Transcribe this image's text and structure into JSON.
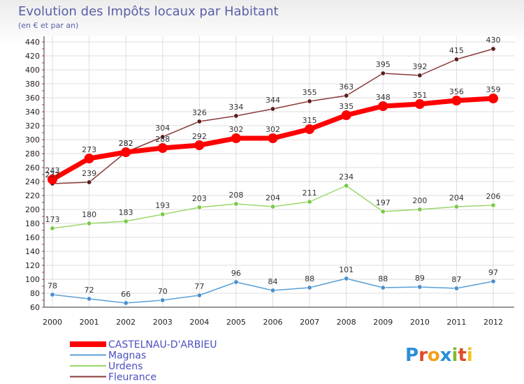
{
  "header": {
    "title": "Evolution des Impôts locaux par Habitant",
    "subtitle": "(en € et par an)"
  },
  "logo": {
    "text": "Proxiti",
    "letter_colors": [
      "#2a8fd8",
      "#e04a2a",
      "#f2a21c",
      "#2a8fd8",
      "#7cbd2a",
      "#e04a2a",
      "#f2c21c"
    ]
  },
  "colors": {
    "background_top": "#f2f2f2",
    "plot_background": "#ffffff",
    "grid": "#dddddd",
    "title": "#5a5fa8",
    "legend_text": "#4a4fc0"
  },
  "chart_data": {
    "type": "line",
    "title": "Evolution des Impôts locaux par Habitant",
    "subtitle": "(en € et par an)",
    "xlabel": "",
    "ylabel": "",
    "x": [
      "2000",
      "2001",
      "2002",
      "2003",
      "2004",
      "2005",
      "2006",
      "2007",
      "2008",
      "2009",
      "2010",
      "2011",
      "2012"
    ],
    "ylim": [
      60,
      440
    ],
    "yticks": [
      60,
      80,
      100,
      120,
      140,
      160,
      180,
      200,
      220,
      240,
      260,
      280,
      300,
      320,
      340,
      360,
      380,
      400,
      420,
      440
    ],
    "grid": true,
    "legend_position": "bottom-left",
    "series": [
      {
        "name": "CASTELNAU-D'ARBIEU",
        "color": "#ff0000",
        "marker": "#ff0000",
        "values": [
          243,
          273,
          282,
          288,
          292,
          302,
          302,
          315,
          335,
          348,
          351,
          356,
          359
        ]
      },
      {
        "name": "Magnas",
        "color": "#5a9fd6",
        "marker": "#4a8fcc",
        "values": [
          78,
          72,
          66,
          70,
          77,
          96,
          84,
          88,
          101,
          88,
          89,
          87,
          97
        ]
      },
      {
        "name": "Urdens",
        "color": "#9ad86a",
        "marker": "#7cc84a",
        "values": [
          173,
          180,
          183,
          193,
          203,
          208,
          204,
          211,
          234,
          197,
          200,
          204,
          206
        ]
      },
      {
        "name": "Fleurance",
        "color": "#8a3a3a",
        "marker": "#5a1a1a",
        "values": [
          237,
          239,
          282,
          304,
          326,
          334,
          344,
          355,
          363,
          395,
          392,
          415,
          430
        ]
      }
    ],
    "data_labels": {
      "CASTELNAU-D'ARBIEU": [
        "243",
        "273",
        "282",
        "288",
        "292",
        "302",
        "302",
        "315",
        "335",
        "348",
        "351",
        "356",
        "359"
      ],
      "Magnas": [
        "78",
        "72",
        "66",
        "70",
        "77",
        "96",
        "84",
        "88",
        "101",
        "88",
        "89",
        "87",
        "97"
      ],
      "Urdens": [
        "173",
        "180",
        "183",
        "193",
        "203",
        "208",
        "204",
        "211",
        "234",
        "197",
        "200",
        "204",
        "206"
      ],
      "Fleurance": [
        "237",
        "239",
        "282",
        "304",
        "326",
        "334",
        "344",
        "355",
        "363",
        "395",
        "392",
        "415",
        "430"
      ]
    }
  }
}
